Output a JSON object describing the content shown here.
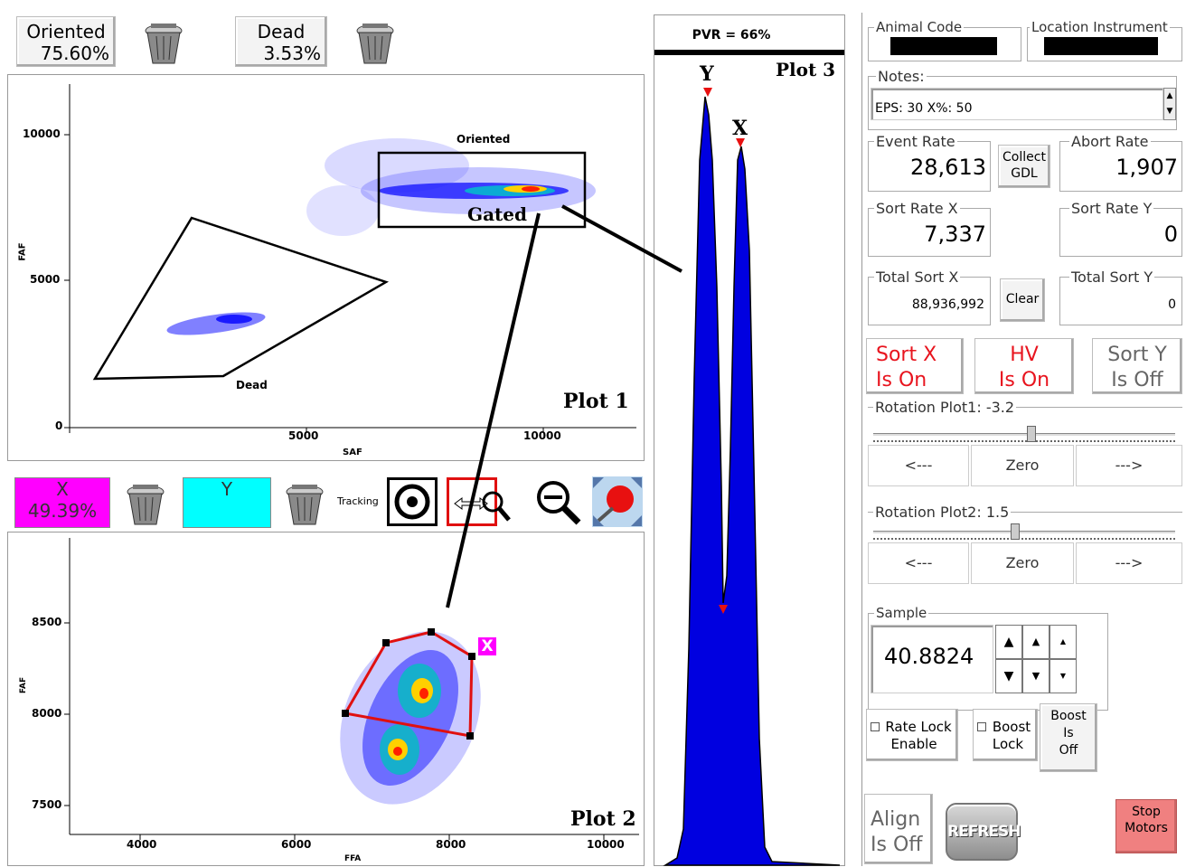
{
  "header": {
    "oriented_label": "Oriented",
    "oriented_value": "75.60%",
    "dead_label": "Dead",
    "dead_value": "3.53%"
  },
  "plot1": {
    "title": "Plot 1",
    "x_label": "SAF",
    "y_label": "FAF",
    "x_ticks": [
      "0",
      "5000",
      "10000"
    ],
    "y_ticks": [
      "0",
      "5000",
      "10000"
    ],
    "gate_oriented": "Oriented",
    "gate_dead": "Dead",
    "gate_gated": "Gated"
  },
  "plot2_toolbar": {
    "x_label": "X",
    "x_value": "49.39%",
    "y_label": "Y",
    "tracking": "Tracking",
    "x_color": "#ff00ff",
    "y_color": "#00ffff"
  },
  "plot2": {
    "title": "Plot 2",
    "x_label": "FFA",
    "y_label": "FAF",
    "x_ticks": [
      "4000",
      "6000",
      "8000",
      "10000"
    ],
    "y_ticks": [
      "8500",
      "8000",
      "7500"
    ],
    "gate_marker": "X"
  },
  "plot3": {
    "pvr": "PVR = 66%",
    "title": "Plot 3",
    "peak_y": "Y",
    "peak_x": "X"
  },
  "panel": {
    "animal_code_label": "Animal Code",
    "location_label": "Location Instrument",
    "notes_label": "Notes:",
    "notes_value": "EPS: 30 X%: 50",
    "event_rate_label": "Event Rate",
    "event_rate": "28,613",
    "collect_gdl": "Collect GDL",
    "abort_rate_label": "Abort Rate",
    "abort_rate": "1,907",
    "sort_rate_x_label": "Sort Rate X",
    "sort_rate_x": "7,337",
    "sort_rate_y_label": "Sort Rate Y",
    "sort_rate_y": "0",
    "total_sort_x_label": "Total Sort X",
    "total_sort_x": "88,936,992",
    "clear": "Clear",
    "total_sort_y_label": "Total Sort Y",
    "total_sort_y": "0",
    "sort_x_l1": "Sort X",
    "sort_x_l2": "Is On",
    "hv_l1": "HV",
    "hv_l2": "Is On",
    "sort_y_l1": "Sort Y",
    "sort_y_l2": "Is Off",
    "rotation1_label": "Rotation Plot1: -3.2",
    "rotation2_label": "Rotation Plot2: 1.5",
    "left_arrow": "<---",
    "zero": "Zero",
    "right_arrow": "--->",
    "sample_label": "Sample",
    "sample_value": "40.8824",
    "rate_lock_l1": "Rate Lock",
    "rate_lock_l2": "Enable",
    "boost_lock_l1": "Boost",
    "boost_lock_l2": "Lock",
    "boost_l1": "Boost",
    "boost_l2": "Is",
    "boost_l3": "Off",
    "align_l1": "Align",
    "align_l2": "Is Off",
    "refresh": "REFRESH",
    "stop_l1": "Stop",
    "stop_l2": "Motors",
    "on_color": "#e8141e",
    "stop_color": "#f08080"
  }
}
